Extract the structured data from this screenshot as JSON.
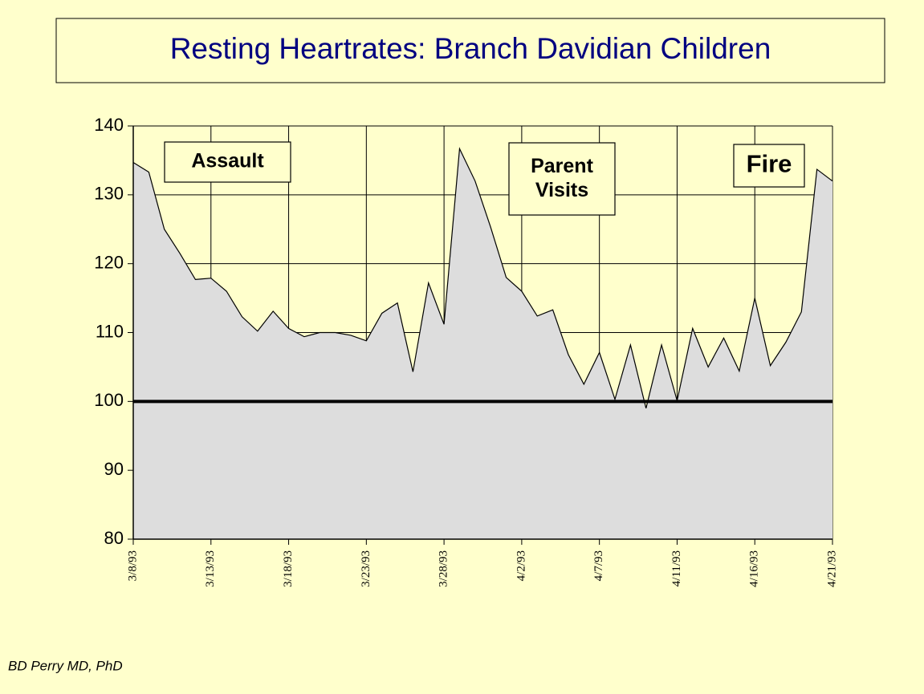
{
  "chart_data": {
    "type": "area",
    "title": "Resting Heartrates: Branch Davidian Children",
    "categories": [
      "3/8/93",
      null,
      null,
      null,
      null,
      "3/13/93",
      null,
      null,
      null,
      null,
      "3/18/93",
      null,
      null,
      null,
      null,
      "3/23/93",
      null,
      null,
      null,
      null,
      "3/28/93",
      null,
      null,
      null,
      null,
      "4/2/93",
      null,
      null,
      null,
      null,
      "4/7/93",
      null,
      null,
      null,
      null,
      "4/11/93",
      null,
      null,
      null,
      null,
      "4/16/93",
      null,
      null,
      null,
      null,
      "4/21/93"
    ],
    "values": [
      134.7,
      133.3,
      125,
      121.5,
      117.7,
      117.9,
      116,
      112.3,
      110.2,
      113.1,
      110.6,
      109.4,
      110,
      110,
      109.6,
      108.8,
      112.8,
      114.3,
      104.3,
      117.2,
      111.2,
      136.7,
      132,
      125.3,
      118,
      116,
      112.4,
      113.3,
      106.8,
      102.5,
      107.1,
      100.3,
      108.2,
      99,
      108.2,
      100.1,
      110.6,
      105,
      109.2,
      104.4,
      115,
      105.2,
      108.6,
      113,
      133.7,
      132
    ],
    "color": "#dddddd",
    "ylim": [
      80,
      140
    ],
    "yticks": [
      80,
      90,
      100,
      110,
      120,
      130,
      140
    ],
    "grid": true,
    "reference_line": 100,
    "annotations": [
      "Assault",
      "Parent Visits",
      "Fire"
    ],
    "footer": "BD Perry MD, PhD"
  }
}
